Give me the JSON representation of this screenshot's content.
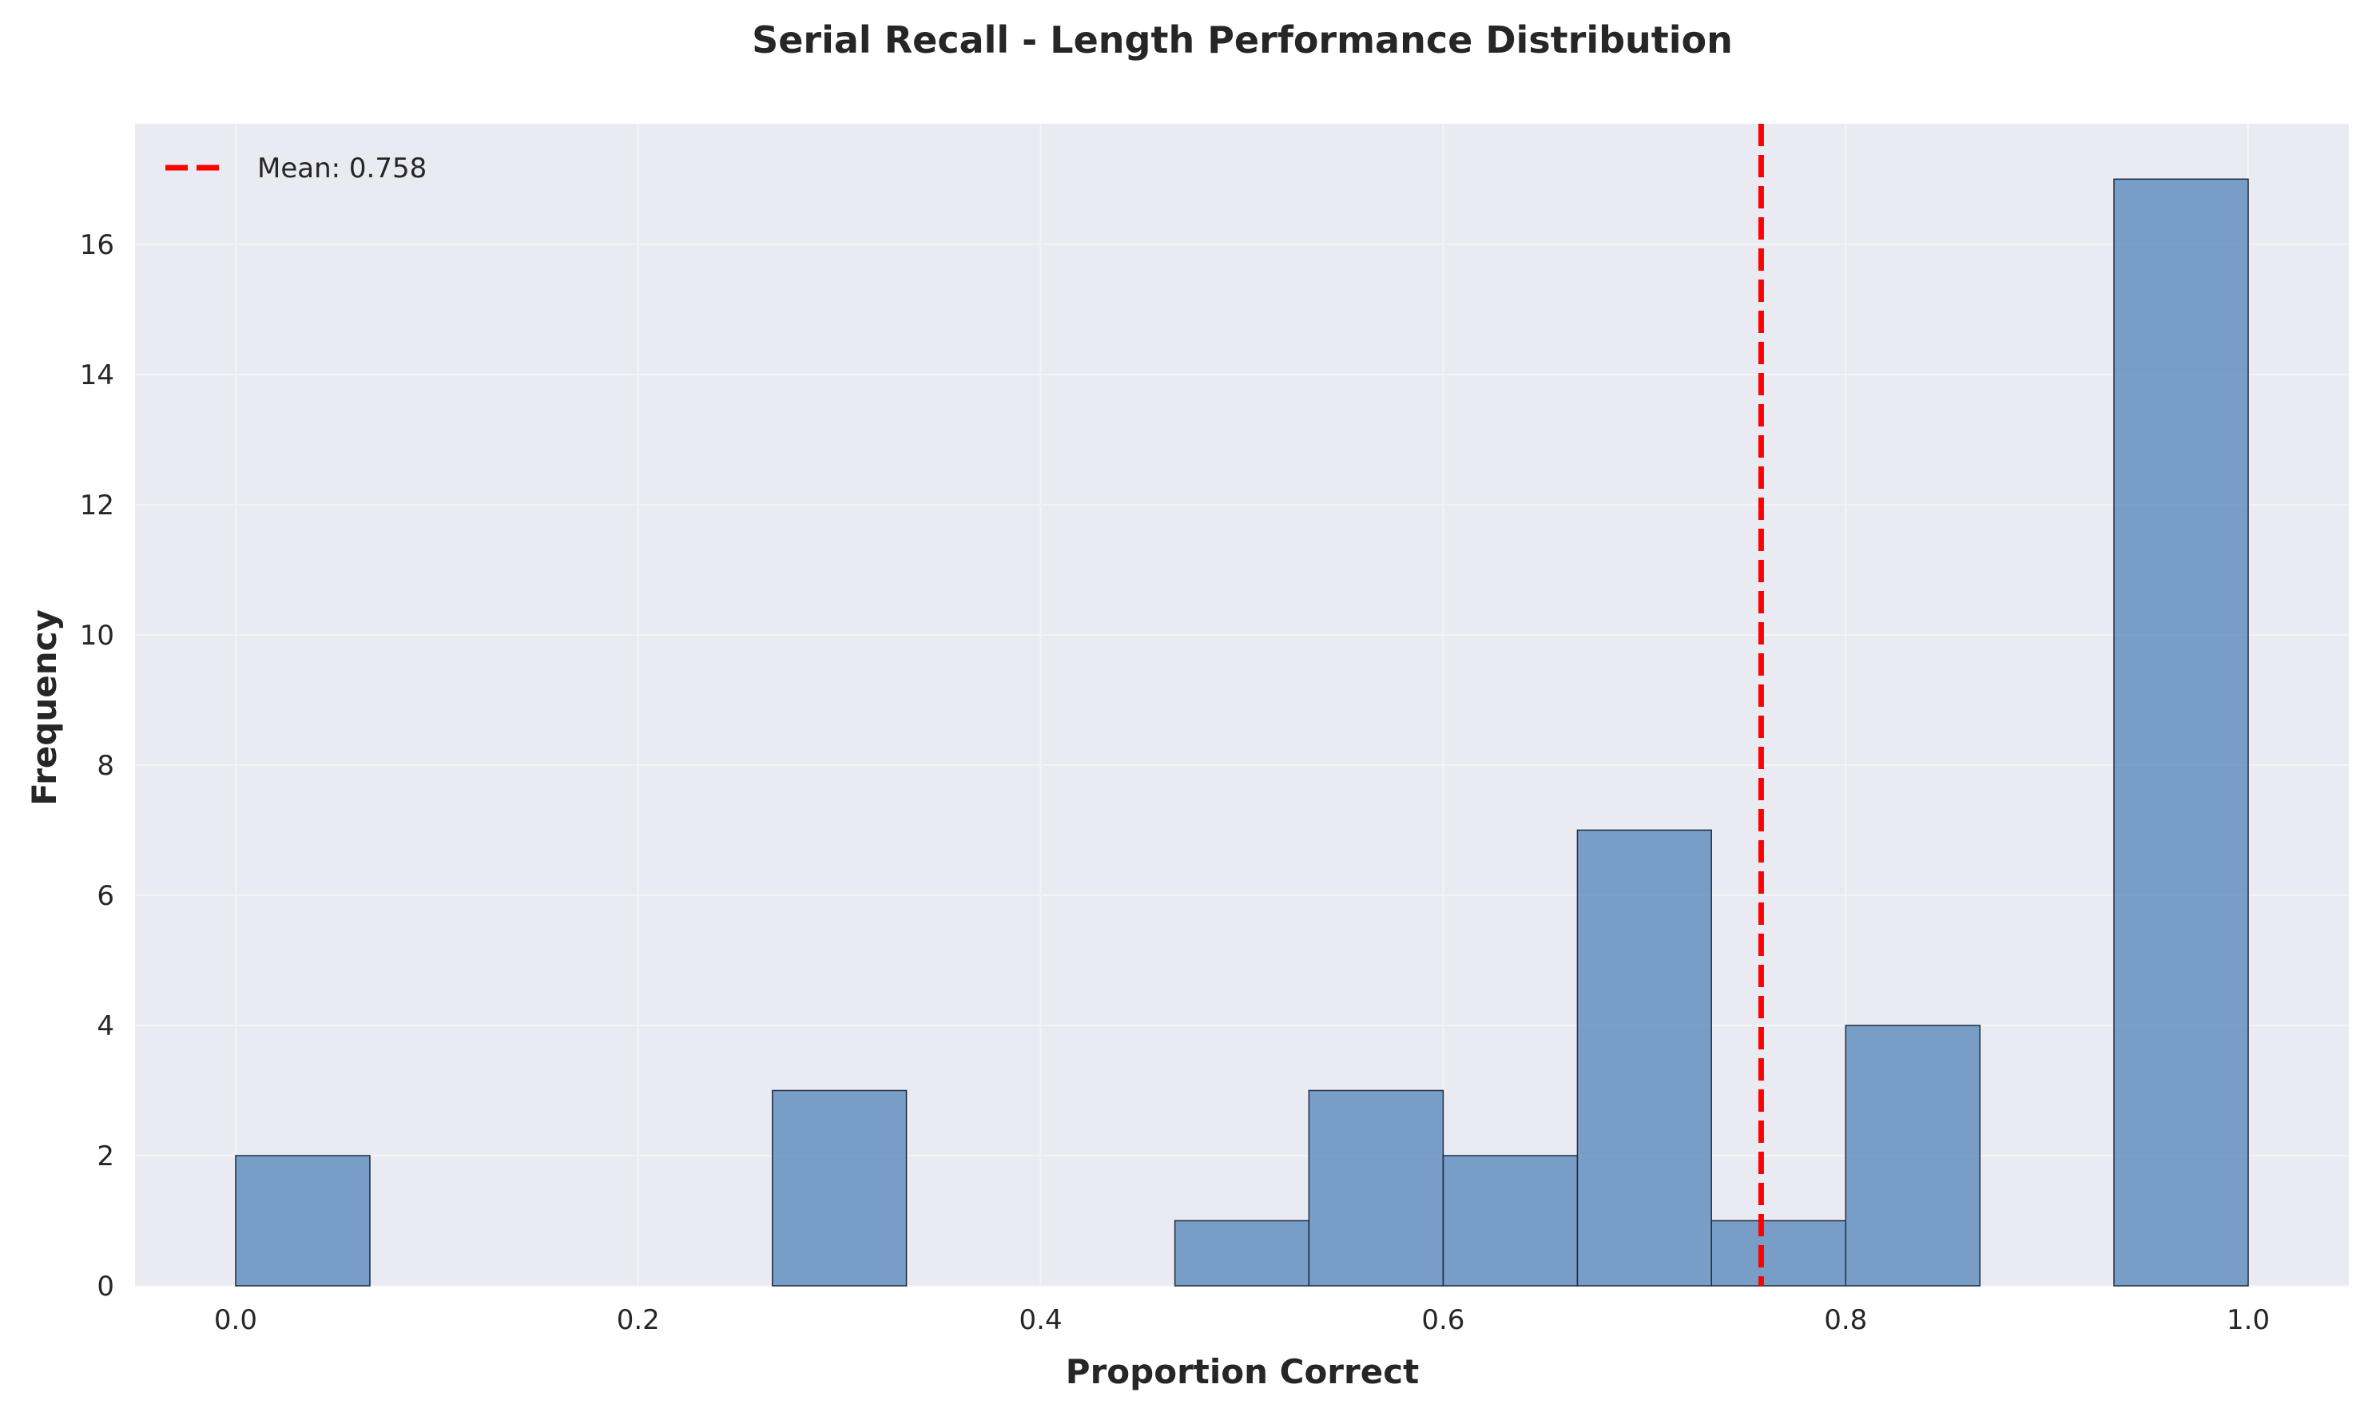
{
  "chart_data": {
    "type": "bar",
    "subtype": "histogram",
    "title": "Serial Recall - Length Performance Distribution",
    "xlabel": "Proportion Correct",
    "ylabel": "Frequency",
    "xlim": [
      -0.05,
      1.05
    ],
    "ylim": [
      0,
      17.85
    ],
    "xticks": [
      0.0,
      0.2,
      0.4,
      0.6,
      0.8,
      1.0
    ],
    "xtick_labels": [
      "0.0",
      "0.2",
      "0.4",
      "0.6",
      "0.8",
      "1.0"
    ],
    "yticks": [
      0,
      2,
      4,
      6,
      8,
      10,
      12,
      14,
      16
    ],
    "ytick_labels": [
      "0",
      "2",
      "4",
      "6",
      "8",
      "10",
      "12",
      "14",
      "16"
    ],
    "bin_edges": [
      0.0,
      0.0667,
      0.1333,
      0.2,
      0.2667,
      0.3333,
      0.4,
      0.4667,
      0.5333,
      0.6,
      0.6667,
      0.7333,
      0.8,
      0.8667,
      0.9333,
      1.0
    ],
    "values": [
      2,
      0,
      0,
      0,
      3,
      0,
      0,
      1,
      3,
      2,
      7,
      1,
      4,
      0,
      17
    ],
    "bar_color": "#4c7fb5",
    "bar_edge_color": "#1f2d3d",
    "grid": true,
    "background_color": "#eaeaf2",
    "mean_line": {
      "value": 0.758,
      "color": "#ff0000",
      "style": "dashed",
      "label": "Mean: 0.758"
    },
    "legend": {
      "position": "top-left",
      "entries": [
        "Mean: 0.758"
      ]
    }
  }
}
